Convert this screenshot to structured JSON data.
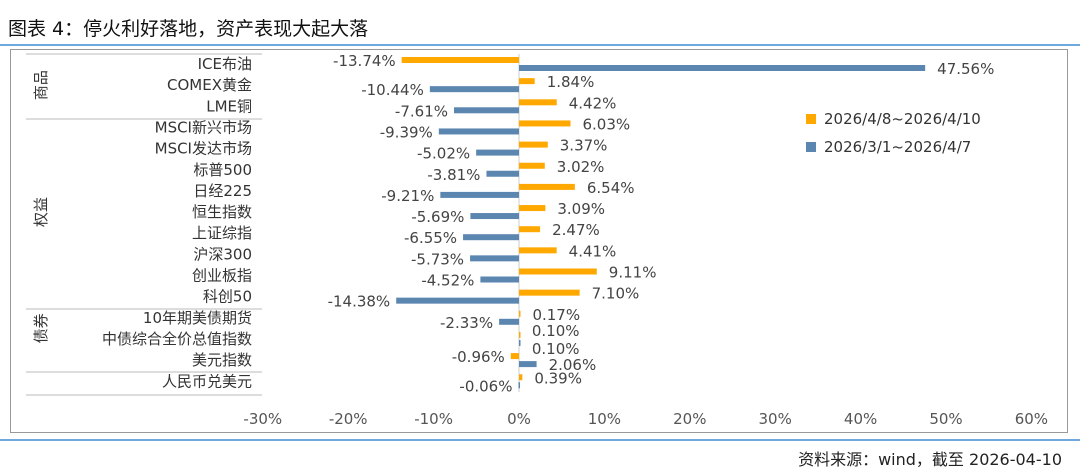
{
  "title": "图表 4：停火利好落地，资产表现大起大落",
  "source": "资料来源：wind，截至 2026-04-10",
  "chart_data": {
    "type": "bar",
    "orientation": "horizontal",
    "groups": [
      {
        "name": "商品",
        "from": 0,
        "to": 2
      },
      {
        "name": "权益",
        "from": 3,
        "to": 11
      },
      {
        "name": "债券",
        "from": 12,
        "to": 13
      }
    ],
    "categories": [
      "ICE布油",
      "COMEX黄金",
      "LME铜",
      "MSCI新兴市场",
      "MSCI发达市场",
      "标普500",
      "日经225",
      "恒生指数",
      "上证综指",
      "沪深300",
      "创业板指",
      "科创50",
      "10年期美债期货",
      "中债综合全价总值指数",
      "美元指数",
      "人民币兑美元"
    ],
    "series": [
      {
        "name": "2026/4/8~2026/4/10",
        "color": "#ffa800",
        "values": [
          -13.74,
          1.84,
          4.42,
          6.03,
          3.37,
          3.02,
          6.54,
          3.09,
          2.47,
          4.41,
          9.11,
          7.1,
          0.17,
          0.1,
          -0.96,
          0.39
        ]
      },
      {
        "name": "2026/3/1~2026/4/7",
        "color": "#5b86b0",
        "values": [
          47.56,
          -10.44,
          -7.61,
          -9.39,
          -5.02,
          -3.81,
          -9.21,
          -5.69,
          -6.55,
          -5.73,
          -4.52,
          -14.38,
          -2.33,
          0.1,
          2.06,
          -0.06
        ]
      }
    ],
    "xlim": [
      -30,
      60
    ],
    "xticks": [
      "-30%",
      "-20%",
      "-10%",
      "0%",
      "10%",
      "20%",
      "30%",
      "40%",
      "50%",
      "60%"
    ],
    "legend": "right"
  }
}
